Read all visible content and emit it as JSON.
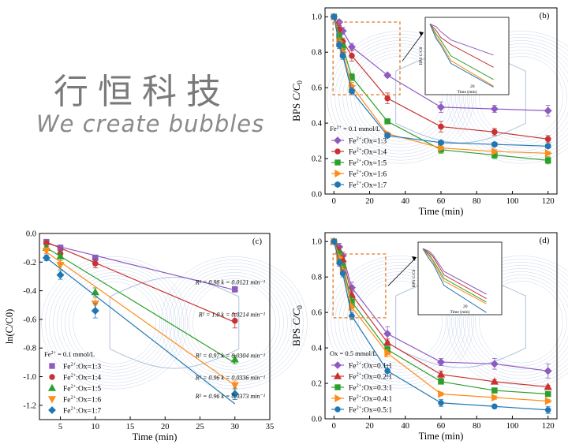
{
  "logo": {
    "title_cn": "行恒科技",
    "subtitle": "We create bubbles"
  },
  "chart_data": [
    {
      "id": "b",
      "type": "line",
      "panel_label": "(b)",
      "xlabel": "Time (min)",
      "ylabel": "BPS C/C0",
      "xlim": [
        -5,
        125
      ],
      "ylim": [
        0,
        1.05
      ],
      "xticks": [
        0,
        20,
        40,
        60,
        80,
        100,
        120
      ],
      "yticks": [
        0.0,
        0.2,
        0.4,
        0.6,
        0.8,
        1.0
      ],
      "legend_header": "Fe2+ = 0.1 mmol/L",
      "x": [
        0,
        3,
        5,
        10,
        30,
        60,
        90,
        120
      ],
      "series": [
        {
          "name": "Fe2+:Ox=1:3",
          "color": "#8e5cc0",
          "marker": "diamond",
          "values": [
            1.0,
            0.97,
            0.92,
            0.83,
            0.67,
            0.49,
            0.48,
            0.47
          ],
          "errors": [
            0,
            0.01,
            0.02,
            0.02,
            0.01,
            0.03,
            0.02,
            0.03
          ]
        },
        {
          "name": "Fe2+:Ox=1:4",
          "color": "#c83232",
          "marker": "circle",
          "values": [
            1.0,
            0.93,
            0.86,
            0.78,
            0.54,
            0.38,
            0.35,
            0.31
          ],
          "errors": [
            0,
            0.02,
            0.02,
            0.03,
            0.03,
            0.03,
            0.02,
            0.02
          ]
        },
        {
          "name": "Fe2+:Ox=1:5",
          "color": "#2ca02c",
          "marker": "square",
          "values": [
            1.0,
            0.89,
            0.83,
            0.66,
            0.41,
            0.25,
            0.22,
            0.19
          ],
          "errors": [
            0,
            0.02,
            0.02,
            0.02,
            0.01,
            0.02,
            0.02,
            0.02
          ]
        },
        {
          "name": "Fe2+:Ox=1:6",
          "color": "#ff8c1a",
          "marker": "triangle-right",
          "values": [
            1.0,
            0.86,
            0.8,
            0.61,
            0.34,
            0.26,
            0.24,
            0.23
          ],
          "errors": [
            0,
            0.02,
            0.02,
            0.02,
            0.01,
            0.01,
            0.01,
            0.01
          ]
        },
        {
          "name": "Fe2+:Ox=1:7",
          "color": "#1f77b4",
          "marker": "hexagon",
          "values": [
            1.0,
            0.84,
            0.78,
            0.58,
            0.33,
            0.29,
            0.28,
            0.27
          ],
          "errors": [
            0,
            0.02,
            0.02,
            0.02,
            0.01,
            0.01,
            0.01,
            0.01
          ]
        }
      ],
      "inset": {
        "xlabel": "Time (min)",
        "ylabel": "BPS C/C0",
        "xtick": "20"
      }
    },
    {
      "id": "c",
      "type": "scatter",
      "panel_label": "(c)",
      "xlabel": "Time (min)",
      "ylabel": "ln(C/C0)",
      "xlim": [
        2,
        35
      ],
      "ylim": [
        -1.3,
        0.0
      ],
      "xticks": [
        5,
        10,
        15,
        20,
        25,
        30,
        35
      ],
      "yticks": [
        0.0,
        -0.2,
        -0.4,
        -0.6,
        -0.8,
        -1.0,
        -1.2
      ],
      "legend_header": "Fe2+ = 0.1 mmol/L",
      "x": [
        3,
        5,
        10,
        30
      ],
      "series": [
        {
          "name": "Fe2+:Ox=1:3",
          "color": "#8e5cc0",
          "marker": "square",
          "values": [
            -0.06,
            -0.1,
            -0.17,
            -0.39
          ],
          "errors": [
            0.02,
            0.02,
            0.02,
            0.02
          ],
          "fit": [
            -0.07,
            -0.395
          ],
          "annotation": "R² = 0.98 k = 0.0121 min⁻¹"
        },
        {
          "name": "Fe2+:Ox=1:4",
          "color": "#c83232",
          "marker": "circle",
          "values": [
            -0.07,
            -0.14,
            -0.21,
            -0.61
          ],
          "errors": [
            0.02,
            0.02,
            0.03,
            0.05
          ],
          "fit": [
            -0.06,
            -0.62
          ],
          "annotation": "R² = 1.0 k = 0.0214 min⁻¹"
        },
        {
          "name": "Fe2+:Ox=1:5",
          "color": "#2ca02c",
          "marker": "triangle-up",
          "values": [
            -0.1,
            -0.16,
            -0.41,
            -0.88
          ],
          "errors": [
            0.02,
            0.03,
            0.03,
            0.03
          ],
          "fit": [
            -0.1,
            -0.905
          ],
          "annotation": "R² = 0.97 k = 0.0304 min⁻¹"
        },
        {
          "name": "Fe2+:Ox=1:6",
          "color": "#ff8c1a",
          "marker": "triangle-down",
          "values": [
            -0.12,
            -0.22,
            -0.49,
            -1.06
          ],
          "errors": [
            0.02,
            0.03,
            0.04,
            0.03
          ],
          "fit": [
            -0.13,
            -1.06
          ],
          "annotation": "R² = 0.96 k = 0.0336 min⁻¹"
        },
        {
          "name": "Fe2+:Ox=1:7",
          "color": "#1f77b4",
          "marker": "diamond",
          "values": [
            -0.17,
            -0.29,
            -0.54,
            -1.12
          ],
          "errors": [
            0.02,
            0.03,
            0.05,
            0.04
          ],
          "fit": [
            -0.17,
            -1.19
          ],
          "annotation": "R² = 0.96 k = 0.0373 min⁻¹"
        }
      ]
    },
    {
      "id": "d",
      "type": "line",
      "panel_label": "(d)",
      "xlabel": "Time (min)",
      "ylabel": "BPS C/C0",
      "xlim": [
        -5,
        125
      ],
      "ylim": [
        0,
        1.05
      ],
      "xticks": [
        0,
        20,
        40,
        60,
        80,
        100,
        120
      ],
      "yticks": [
        0.0,
        0.2,
        0.4,
        0.6,
        0.8,
        1.0
      ],
      "legend_header": "Ox = 0.5 mmol/L",
      "x": [
        0,
        3,
        5,
        10,
        30,
        60,
        90,
        120
      ],
      "series": [
        {
          "name": "Fe2+:Ox=0.1:1",
          "color": "#8e5cc0",
          "marker": "diamond",
          "values": [
            1.0,
            0.97,
            0.92,
            0.74,
            0.48,
            0.32,
            0.31,
            0.27
          ],
          "errors": [
            0,
            0.02,
            0.02,
            0.03,
            0.04,
            0.02,
            0.03,
            0.04
          ]
        },
        {
          "name": "Fe2+:Ox=0.2:1",
          "color": "#c83232",
          "marker": "triangle-up",
          "values": [
            1.0,
            0.95,
            0.9,
            0.7,
            0.43,
            0.25,
            0.21,
            0.18
          ],
          "errors": [
            0,
            0.02,
            0.02,
            0.02,
            0.02,
            0.02,
            0.01,
            0.01
          ]
        },
        {
          "name": "Fe2+:Ox=0.3:1",
          "color": "#2ca02c",
          "marker": "square",
          "values": [
            1.0,
            0.93,
            0.86,
            0.66,
            0.39,
            0.21,
            0.16,
            0.14
          ],
          "errors": [
            0,
            0.02,
            0.02,
            0.02,
            0.02,
            0.01,
            0.01,
            0.01
          ]
        },
        {
          "name": "Fe2+:Ox=0.4:1",
          "color": "#ff8c1a",
          "marker": "triangle-right",
          "values": [
            1.0,
            0.91,
            0.84,
            0.63,
            0.37,
            0.14,
            0.12,
            0.1
          ],
          "errors": [
            0,
            0.02,
            0.02,
            0.02,
            0.02,
            0.01,
            0.01,
            0.01
          ]
        },
        {
          "name": "Fe2+:Ox=0.5:1",
          "color": "#1f77b4",
          "marker": "circle",
          "values": [
            1.0,
            0.88,
            0.82,
            0.58,
            0.27,
            0.09,
            0.07,
            0.05
          ],
          "errors": [
            0,
            0.02,
            0.02,
            0.02,
            0.03,
            0.02,
            0.01,
            0.02
          ]
        }
      ],
      "inset": {
        "xlabel": "Time (min)",
        "ylabel": "BPS C/C0",
        "xtick": "20"
      }
    }
  ]
}
